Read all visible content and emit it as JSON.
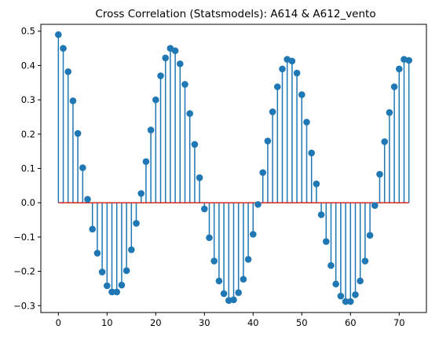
{
  "chart_data": {
    "type": "stem",
    "title": "Cross Correlation (Statsmodels): A614 & A612_vento",
    "xlabel": "",
    "ylabel": "",
    "xlim": [
      -3.6,
      75.6
    ],
    "ylim": [
      -0.32,
      0.52
    ],
    "xticks": [
      0,
      10,
      20,
      30,
      40,
      50,
      60,
      70
    ],
    "xtick_labels": [
      "0",
      "10",
      "20",
      "30",
      "40",
      "50",
      "60",
      "70"
    ],
    "yticks": [
      -0.3,
      -0.2,
      -0.1,
      0.0,
      0.1,
      0.2,
      0.3,
      0.4,
      0.5
    ],
    "ytick_labels": [
      "−0.3",
      "−0.2",
      "−0.1",
      "0.0",
      "0.1",
      "0.2",
      "0.3",
      "0.4",
      "0.5"
    ],
    "grid": false,
    "stem_color": "#1f77b4",
    "baseline_color": "#d62728",
    "baseline_value": 0,
    "x": [
      0,
      1,
      2,
      3,
      4,
      5,
      6,
      7,
      8,
      9,
      10,
      11,
      12,
      13,
      14,
      15,
      16,
      17,
      18,
      19,
      20,
      21,
      22,
      23,
      24,
      25,
      26,
      27,
      28,
      29,
      30,
      31,
      32,
      33,
      34,
      35,
      36,
      37,
      38,
      39,
      40,
      41,
      42,
      43,
      44,
      45,
      46,
      47,
      48,
      49,
      50,
      51,
      52,
      53,
      54,
      55,
      56,
      57,
      58,
      59,
      60,
      61,
      62,
      63,
      64,
      65,
      66,
      67,
      68,
      69,
      70,
      71,
      72
    ],
    "values": [
      0.49,
      0.45,
      0.382,
      0.297,
      0.202,
      0.102,
      0.01,
      -0.077,
      -0.147,
      -0.202,
      -0.242,
      -0.26,
      -0.26,
      -0.24,
      -0.198,
      -0.137,
      -0.06,
      0.027,
      0.12,
      0.212,
      0.3,
      0.37,
      0.422,
      0.45,
      0.443,
      0.405,
      0.345,
      0.26,
      0.17,
      0.073,
      -0.018,
      -0.102,
      -0.17,
      -0.228,
      -0.265,
      -0.285,
      -0.283,
      -0.262,
      -0.223,
      -0.165,
      -0.092,
      -0.005,
      0.088,
      0.18,
      0.265,
      0.338,
      0.39,
      0.418,
      0.413,
      0.378,
      0.315,
      0.235,
      0.145,
      0.055,
      -0.035,
      -0.113,
      -0.183,
      -0.237,
      -0.272,
      -0.288,
      -0.288,
      -0.268,
      -0.228,
      -0.17,
      -0.095,
      -0.008,
      0.083,
      0.178,
      0.263,
      0.338,
      0.39,
      0.418,
      0.415
    ]
  }
}
